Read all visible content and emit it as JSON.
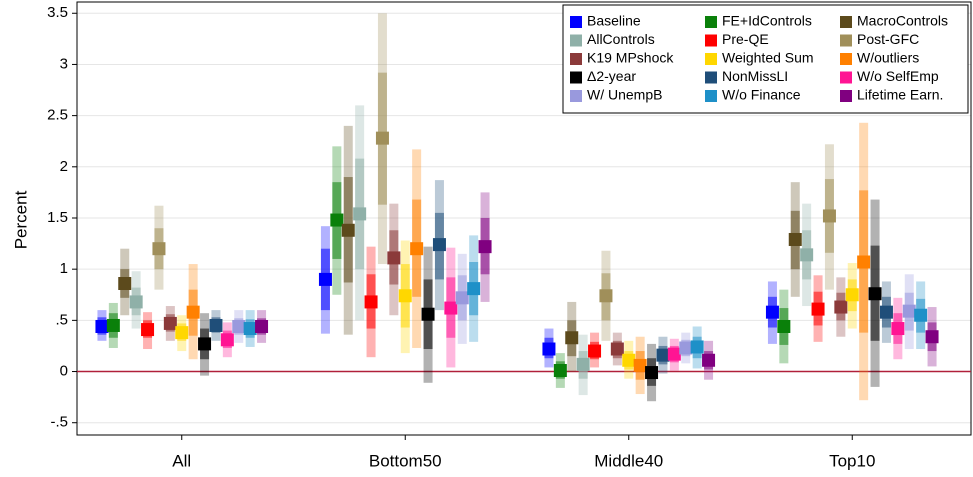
{
  "chart_data": {
    "type": "coefplot",
    "y_label": "Percent",
    "categories": [
      "All",
      "Bottom50",
      "Middle40",
      "Top10"
    ],
    "ylim": [
      -0.62,
      3.61
    ],
    "yticks": [
      {
        "value": -0.5,
        "label": "-.5"
      },
      0,
      {
        "value": 0.5,
        "label": ".5"
      },
      1,
      1.5,
      2,
      2.5,
      3,
      3.5
    ],
    "grid": true,
    "hline": 0,
    "hline_color": "#b0203a",
    "legend_position": "top-right",
    "series": [
      {
        "name": "Baseline",
        "color": "#0000ff",
        "values": [
          0.44,
          0.9,
          0.22,
          0.58
        ],
        "ci_inner": [
          [
            0.36,
            0.53
          ],
          [
            0.6,
            1.2
          ],
          [
            0.13,
            0.33
          ],
          [
            0.43,
            0.73
          ]
        ],
        "ci_outer": [
          [
            0.3,
            0.6
          ],
          [
            0.37,
            1.42
          ],
          [
            0.04,
            0.42
          ],
          [
            0.27,
            0.88
          ]
        ]
      },
      {
        "name": "FE+IdControls",
        "color": "#0a800a",
        "values": [
          0.45,
          1.48,
          0.01,
          0.44
        ],
        "ci_inner": [
          [
            0.33,
            0.57
          ],
          [
            1.1,
            1.85
          ],
          [
            -0.07,
            0.1
          ],
          [
            0.26,
            0.62
          ]
        ],
        "ci_outer": [
          [
            0.23,
            0.67
          ],
          [
            0.75,
            2.2
          ],
          [
            -0.16,
            0.18
          ],
          [
            0.08,
            0.8
          ]
        ]
      },
      {
        "name": "MacroControls",
        "color": "#5c4a1c",
        "values": [
          0.86,
          1.38,
          0.33,
          1.29
        ],
        "ci_inner": [
          [
            0.72,
            1.0
          ],
          [
            0.87,
            1.9
          ],
          [
            0.15,
            0.5
          ],
          [
            1.0,
            1.57
          ]
        ],
        "ci_outer": [
          [
            0.55,
            1.2
          ],
          [
            0.36,
            2.4
          ],
          [
            0.0,
            0.68
          ],
          [
            0.73,
            1.85
          ]
        ]
      },
      {
        "name": "AllControls",
        "color": "#8fb0a8",
        "values": [
          0.68,
          1.54,
          0.07,
          1.14
        ],
        "ci_inner": [
          [
            0.55,
            0.82
          ],
          [
            1.0,
            2.08
          ],
          [
            -0.07,
            0.2
          ],
          [
            0.9,
            1.38
          ]
        ],
        "ci_outer": [
          [
            0.42,
            0.98
          ],
          [
            0.5,
            2.6
          ],
          [
            -0.23,
            0.36
          ],
          [
            0.64,
            1.64
          ]
        ]
      },
      {
        "name": "Pre-QE",
        "color": "#ff0000",
        "values": [
          0.41,
          0.68,
          0.2,
          0.61
        ],
        "ci_inner": [
          [
            0.33,
            0.5
          ],
          [
            0.42,
            0.95
          ],
          [
            0.12,
            0.29
          ],
          [
            0.45,
            0.78
          ]
        ],
        "ci_outer": [
          [
            0.22,
            0.58
          ],
          [
            0.14,
            1.22
          ],
          [
            0.04,
            0.38
          ],
          [
            0.29,
            0.94
          ]
        ]
      },
      {
        "name": "Post-GFC",
        "color": "#a08f5a",
        "values": [
          1.2,
          2.28,
          0.74,
          1.52
        ],
        "ci_inner": [
          [
            1.0,
            1.4
          ],
          [
            1.63,
            2.92
          ],
          [
            0.5,
            0.96
          ],
          [
            1.16,
            1.88
          ]
        ],
        "ci_outer": [
          [
            0.8,
            1.62
          ],
          [
            1.05,
            3.5
          ],
          [
            0.3,
            1.18
          ],
          [
            0.8,
            2.22
          ]
        ]
      },
      {
        "name": "K19 MPshock",
        "color": "#8b3a3a",
        "values": [
          0.47,
          1.11,
          0.22,
          0.63
        ],
        "ci_inner": [
          [
            0.39,
            0.56
          ],
          [
            0.85,
            1.38
          ],
          [
            0.13,
            0.3
          ],
          [
            0.5,
            0.77
          ]
        ],
        "ci_outer": [
          [
            0.3,
            0.64
          ],
          [
            0.55,
            1.64
          ],
          [
            0.06,
            0.38
          ],
          [
            0.34,
            0.92
          ]
        ]
      },
      {
        "name": "Weighted Sum",
        "color": "#ffd700",
        "values": [
          0.38,
          0.74,
          0.11,
          0.75
        ],
        "ci_inner": [
          [
            0.3,
            0.47
          ],
          [
            0.43,
            1.05
          ],
          [
            0.02,
            0.2
          ],
          [
            0.59,
            0.9
          ]
        ],
        "ci_outer": [
          [
            0.2,
            0.55
          ],
          [
            0.18,
            1.28
          ],
          [
            -0.07,
            0.3
          ],
          [
            0.42,
            1.06
          ]
        ]
      },
      {
        "name": "W/outliers",
        "color": "#ff8000",
        "values": [
          0.58,
          1.2,
          0.06,
          1.07
        ],
        "ci_inner": [
          [
            0.35,
            0.8
          ],
          [
            0.73,
            1.68
          ],
          [
            -0.08,
            0.2
          ],
          [
            0.38,
            1.77
          ]
        ],
        "ci_outer": [
          [
            0.12,
            1.05
          ],
          [
            0.23,
            2.17
          ],
          [
            -0.22,
            0.34
          ],
          [
            -0.28,
            2.43
          ]
        ]
      },
      {
        "name": "Δ2-year",
        "color": "#000000",
        "values": [
          0.27,
          0.56,
          -0.01,
          0.76
        ],
        "ci_inner": [
          [
            0.12,
            0.42
          ],
          [
            0.22,
            0.9
          ],
          [
            -0.14,
            0.13
          ],
          [
            0.3,
            1.23
          ]
        ],
        "ci_outer": [
          [
            -0.04,
            0.57
          ],
          [
            -0.11,
            1.22
          ],
          [
            -0.29,
            0.27
          ],
          [
            -0.15,
            1.68
          ]
        ]
      },
      {
        "name": "NonMissLI",
        "color": "#1f4e79",
        "values": [
          0.45,
          1.24,
          0.16,
          0.58
        ],
        "ci_inner": [
          [
            0.38,
            0.53
          ],
          [
            0.9,
            1.55
          ],
          [
            0.07,
            0.25
          ],
          [
            0.43,
            0.73
          ]
        ],
        "ci_outer": [
          [
            0.3,
            0.6
          ],
          [
            0.6,
            1.87
          ],
          [
            -0.02,
            0.34
          ],
          [
            0.28,
            0.88
          ]
        ]
      },
      {
        "name": "W/o SelfEmp",
        "color": "#ff1493",
        "values": [
          0.31,
          0.62,
          0.17,
          0.42
        ],
        "ci_inner": [
          [
            0.23,
            0.4
          ],
          [
            0.33,
            0.92
          ],
          [
            0.09,
            0.25
          ],
          [
            0.27,
            0.57
          ]
        ],
        "ci_outer": [
          [
            0.14,
            0.48
          ],
          [
            0.04,
            1.21
          ],
          [
            0.01,
            0.32
          ],
          [
            0.12,
            0.72
          ]
        ]
      },
      {
        "name": "W/ UnempB",
        "color": "#9999dd",
        "values": [
          0.44,
          0.72,
          0.23,
          0.59
        ],
        "ci_inner": [
          [
            0.36,
            0.52
          ],
          [
            0.5,
            0.94
          ],
          [
            0.15,
            0.31
          ],
          [
            0.4,
            0.77
          ]
        ],
        "ci_outer": [
          [
            0.28,
            0.6
          ],
          [
            0.27,
            1.15
          ],
          [
            0.08,
            0.38
          ],
          [
            0.22,
            0.95
          ]
        ]
      },
      {
        "name": "W/o Finance",
        "color": "#1e90c8",
        "values": [
          0.42,
          0.81,
          0.24,
          0.55
        ],
        "ci_inner": [
          [
            0.33,
            0.51
          ],
          [
            0.55,
            1.07
          ],
          [
            0.13,
            0.34
          ],
          [
            0.38,
            0.71
          ]
        ],
        "ci_outer": [
          [
            0.24,
            0.6
          ],
          [
            0.29,
            1.33
          ],
          [
            0.03,
            0.44
          ],
          [
            0.22,
            0.88
          ]
        ]
      },
      {
        "name": "Lifetime Earn.",
        "color": "#800080",
        "values": [
          0.44,
          1.22,
          0.11,
          0.34
        ],
        "ci_inner": [
          [
            0.36,
            0.52
          ],
          [
            0.95,
            1.5
          ],
          [
            0.02,
            0.2
          ],
          [
            0.2,
            0.48
          ]
        ],
        "ci_outer": [
          [
            0.28,
            0.6
          ],
          [
            0.68,
            1.75
          ],
          [
            -0.08,
            0.3
          ],
          [
            0.05,
            0.63
          ]
        ]
      }
    ]
  }
}
